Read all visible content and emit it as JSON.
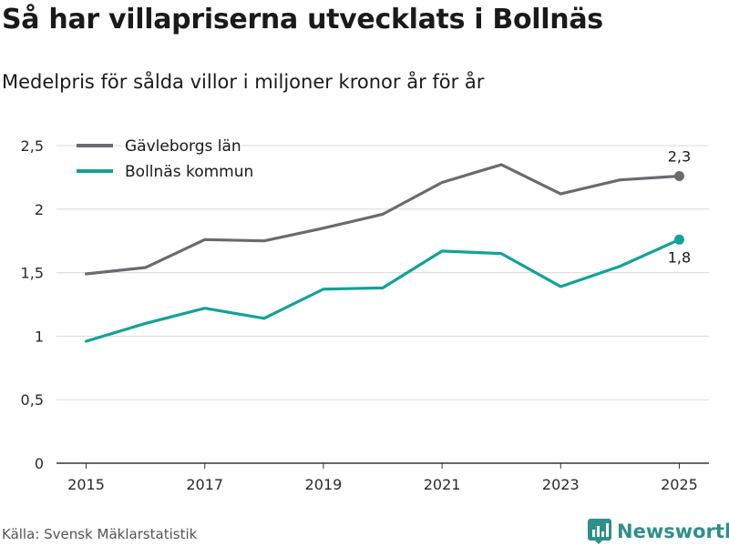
{
  "title": "Så har villapriserna utvecklats i Bollnäs",
  "subtitle": "Medelpris för sålda villor i miljoner kronor år för år",
  "source": "Källa: Svensk Mäklarstatistik",
  "brand": {
    "name": "Newsworthy",
    "icon": "bar-chart-logo-icon",
    "color": "#2f8f8a"
  },
  "chart_data": {
    "type": "line",
    "x": [
      2015,
      2016,
      2017,
      2018,
      2019,
      2020,
      2021,
      2022,
      2023,
      2024,
      2025
    ],
    "x_tick_labels": [
      "2015",
      "2017",
      "2019",
      "2021",
      "2023",
      "2025"
    ],
    "x_ticks": [
      2015,
      2017,
      2019,
      2021,
      2023,
      2025
    ],
    "xlim": [
      2014.5,
      2025.5
    ],
    "y_ticks": [
      0,
      0.5,
      1,
      1.5,
      2,
      2.5
    ],
    "y_tick_labels": [
      "0",
      "0,5",
      "1",
      "1,5",
      "2",
      "2,5"
    ],
    "ylim": [
      0,
      2.5
    ],
    "grid": true,
    "legend_position": "top-left",
    "series": [
      {
        "name": "Gävleborgs län",
        "color": "#6b6a70",
        "values": [
          1.49,
          1.54,
          1.76,
          1.75,
          1.85,
          1.96,
          2.21,
          2.35,
          2.12,
          2.23,
          2.26
        ],
        "end_label": "2,3"
      },
      {
        "name": "Bollnäs kommun",
        "color": "#12a297",
        "values": [
          0.96,
          1.1,
          1.22,
          1.14,
          1.37,
          1.38,
          1.67,
          1.65,
          1.39,
          1.55,
          1.76
        ],
        "end_label": "1,8"
      }
    ]
  }
}
